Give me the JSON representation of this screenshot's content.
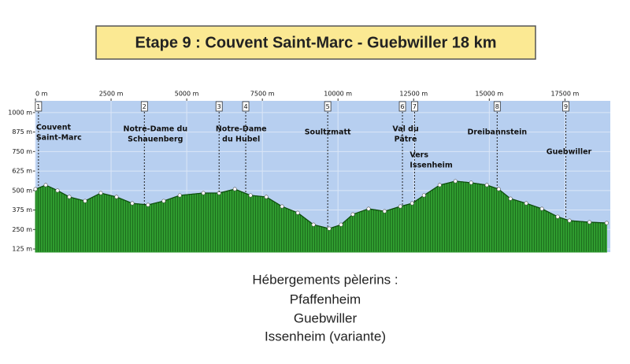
{
  "chart_data": {
    "type": "area",
    "title": "Etape 9 :  Couvent Saint-Marc  -  Guebwiller  18 km",
    "x": [
      0,
      340,
      730,
      1120,
      1640,
      2160,
      2680,
      3200,
      3720,
      4240,
      4770,
      5550,
      6070,
      6590,
      7110,
      7630,
      8150,
      8670,
      9190,
      9710,
      10100,
      10490,
      11010,
      11540,
      12060,
      12450,
      12840,
      13360,
      13880,
      14400,
      14920,
      15310,
      15700,
      16220,
      16740,
      17260,
      17650,
      18310,
      18880
    ],
    "values": [
      509,
      535,
      500,
      459,
      433,
      484,
      459,
      418,
      408,
      433,
      469,
      484,
      484,
      509,
      469,
      459,
      398,
      357,
      281,
      256,
      281,
      347,
      383,
      367,
      398,
      418,
      469,
      535,
      560,
      550,
      535,
      509,
      448,
      418,
      383,
      332,
      307,
      297,
      292
    ],
    "color": "#2e9a2e",
    "xlim": [
      0,
      19000
    ],
    "xticks": [
      {
        "value": 0,
        "label": "0 m"
      },
      {
        "value": 2500,
        "label": "2500 m"
      },
      {
        "value": 5000,
        "label": "5000 m"
      },
      {
        "value": 7500,
        "label": "7500 m"
      },
      {
        "value": 10000,
        "label": "10000 m"
      },
      {
        "value": 12500,
        "label": "12500 m"
      },
      {
        "value": 15000,
        "label": "15000 m"
      },
      {
        "value": 17500,
        "label": "17500 m"
      }
    ],
    "ylim": [
      105,
      1075
    ],
    "yticks": [
      {
        "value": 1000,
        "label": "1000 m"
      },
      {
        "value": 875,
        "label": "875 m"
      },
      {
        "value": 750,
        "label": "750 m"
      },
      {
        "value": 625,
        "label": "625 m"
      },
      {
        "value": 500,
        "label": "500 m"
      },
      {
        "value": 375,
        "label": "375 m"
      },
      {
        "value": 250,
        "label": "250 m"
      },
      {
        "value": 125,
        "label": "125 m"
      }
    ],
    "grid": true,
    "waypoints": [
      {
        "number": 1,
        "x": 100,
        "label": [
          "Couvent",
          "Saint-Marc"
        ]
      },
      {
        "number": 2,
        "x": 3600,
        "label": [
          "Notre-Dame du",
          "Schauenberg"
        ]
      },
      {
        "number": 3,
        "x": 6070,
        "label": [
          "Notre-Dame",
          "du Hubel"
        ]
      },
      {
        "number": 4,
        "x": 6950,
        "label": []
      },
      {
        "number": 5,
        "x": 9660,
        "label": [
          "Soultzmatt"
        ]
      },
      {
        "number": 6,
        "x": 12130,
        "label": [
          "Val du",
          "Pâtre"
        ]
      },
      {
        "number": 7,
        "x": 12530,
        "label": [
          "Vers",
          "Issenheim"
        ]
      },
      {
        "number": 8,
        "x": 15260,
        "label": [
          "Dreibannstein"
        ]
      },
      {
        "number": 9,
        "x": 17530,
        "label": [
          "Guebwiller"
        ]
      }
    ]
  },
  "footer": {
    "title": "Hébergements pèlerins :",
    "lines": [
      "Pfaffenheim",
      "Guebwiller",
      "Issenheim (variante)"
    ]
  }
}
